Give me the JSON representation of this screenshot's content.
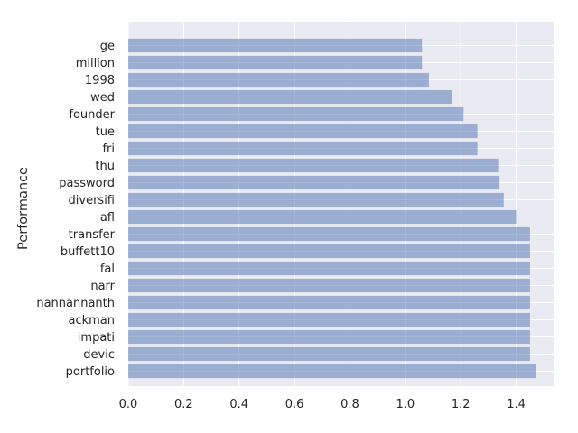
{
  "chart_data": {
    "type": "bar",
    "orientation": "horizontal",
    "title": "",
    "xlabel": "",
    "ylabel": "Performance",
    "categories": [
      "ge",
      "million",
      "1998",
      "wed",
      "founder",
      "tue",
      "fri",
      "thu",
      "password",
      "diversifi",
      "afl",
      "transfer",
      "buffett10",
      "fal",
      "narr",
      "nannannanth",
      "ackman",
      "impati",
      "devic",
      "portfolio"
    ],
    "values": [
      1.06,
      1.06,
      1.085,
      1.17,
      1.21,
      1.26,
      1.26,
      1.335,
      1.34,
      1.355,
      1.4,
      1.45,
      1.45,
      1.45,
      1.45,
      1.45,
      1.45,
      1.45,
      1.45,
      1.47
    ],
    "xlim": [
      0.0,
      1.535
    ],
    "xticks": [
      "0.0",
      "0.2",
      "0.4",
      "0.6",
      "0.8",
      "1.0",
      "1.2",
      "1.4"
    ],
    "grid": true,
    "bar_color": "#4c72b0",
    "bar_opacity": 0.5,
    "background_color": "#eaeaf2",
    "grid_color": "#ffffff"
  }
}
